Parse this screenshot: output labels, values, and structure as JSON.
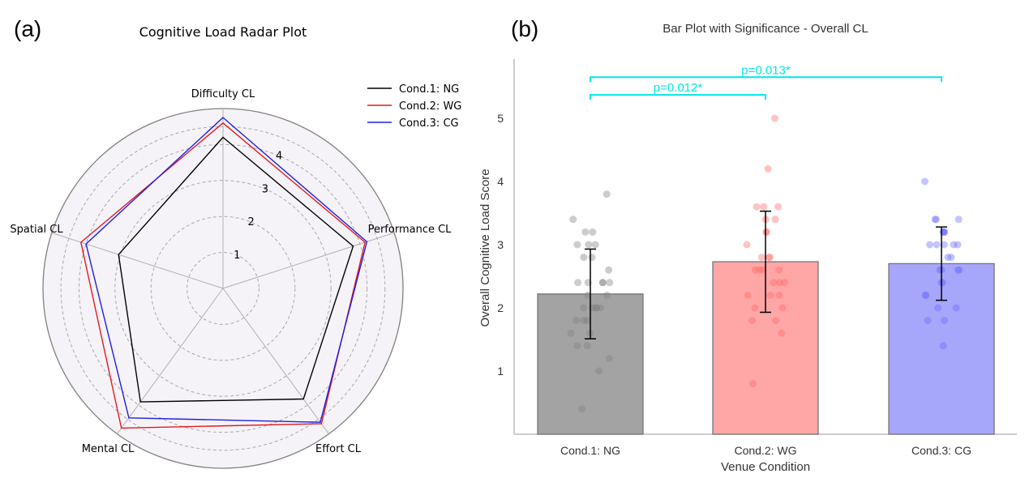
{
  "panel_labels": {
    "a": "(a)",
    "b": "(b)"
  },
  "colors": {
    "NG": "#000000",
    "WG": "#e31a1c",
    "CG": "#1f1fe6",
    "bar_NG": "#a3a3a3",
    "bar_WG": "#ffa6a6",
    "bar_CG": "#a6a6fa",
    "pt_NG": "#808080",
    "pt_WG": "#ff6a6a",
    "pt_CG": "#6b6bff",
    "significance": "#00e6e6",
    "fill": "#f6f3f8"
  },
  "chart_data": [
    {
      "type": "radar",
      "title": "Cognitive Load Radar Plot",
      "axes": [
        "Difficulty CL",
        "Performance CL",
        "Effort CL",
        "Mental CL",
        "Spatial CL"
      ],
      "rmax": 5,
      "rings": [
        1,
        2,
        3,
        4
      ],
      "ring_labels": [
        "1",
        "2",
        "3",
        "4"
      ],
      "legend_position": "top-right",
      "series": [
        {
          "name": "Cond.1: NG",
          "key": "NG",
          "values": [
            4.2,
            3.8,
            3.8,
            3.9,
            3.05
          ]
        },
        {
          "name": "Cond.2: WG",
          "key": "WG",
          "values": [
            4.6,
            4.15,
            4.65,
            4.8,
            4.15
          ]
        },
        {
          "name": "Cond.3: CG",
          "key": "CG",
          "values": [
            4.75,
            4.2,
            4.6,
            4.45,
            4.0
          ]
        }
      ]
    },
    {
      "type": "bar",
      "title": "Bar Plot with Significance - Overall CL",
      "xlabel": "Venue Condition",
      "ylabel": "Overall Cognitive Load Score",
      "ylim": [
        0,
        5.9
      ],
      "yticks": [
        "1",
        "2",
        "3",
        "4",
        "5"
      ],
      "categories": [
        "Cond.1: NG",
        "Cond.2: WG",
        "Cond.3: CG"
      ],
      "keys": [
        "NG",
        "WG",
        "CG"
      ],
      "values": [
        2.22,
        2.73,
        2.7
      ],
      "errors": [
        0.71,
        0.8,
        0.58
      ],
      "points": [
        [
          3.8,
          3.4,
          3.2,
          3.2,
          3.0,
          3.0,
          3.0,
          2.8,
          2.8,
          2.6,
          2.4,
          2.4,
          2.4,
          2.4,
          2.4,
          2.2,
          2.2,
          2.0,
          2.0,
          2.0,
          2.0,
          2.0,
          1.8,
          1.8,
          1.8,
          1.6,
          1.6,
          1.4,
          1.4,
          1.2,
          1.0,
          0.4
        ],
        [
          5.0,
          4.2,
          3.6,
          3.6,
          3.6,
          3.4,
          3.4,
          3.2,
          3.2,
          3.0,
          2.8,
          2.8,
          2.8,
          2.6,
          2.6,
          2.6,
          2.6,
          2.4,
          2.4,
          2.4,
          2.2,
          2.2,
          2.2,
          2.0,
          2.0,
          1.8,
          1.8,
          1.6,
          0.8
        ],
        [
          4.0,
          3.4,
          3.4,
          3.4,
          3.2,
          3.2,
          3.2,
          3.2,
          3.0,
          3.0,
          3.0,
          3.0,
          3.0,
          2.8,
          2.8,
          2.6,
          2.6,
          2.6,
          2.6,
          2.4,
          2.4,
          2.2,
          2.2,
          2.0,
          2.0,
          1.8,
          1.8,
          1.4
        ]
      ],
      "significance": [
        {
          "from": 0,
          "to": 2,
          "label": "p=0.013*",
          "level": 5.65
        },
        {
          "from": 0,
          "to": 1,
          "label": "p=0.012*",
          "level": 5.37
        }
      ]
    }
  ]
}
